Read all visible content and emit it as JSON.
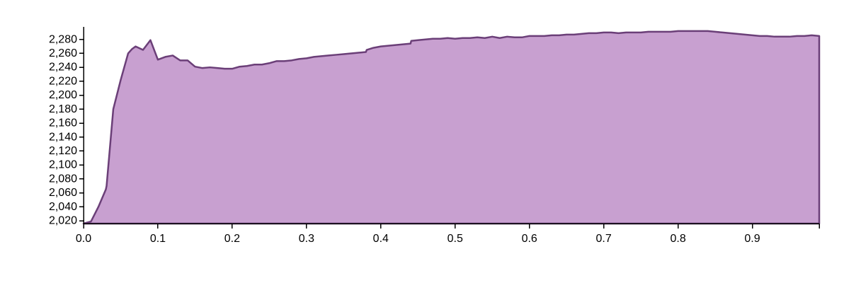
{
  "chart_data": {
    "type": "area",
    "title": "",
    "xlabel": "",
    "ylabel": "",
    "xlim": [
      0,
      0.99
    ],
    "ylim": [
      2016,
      2297
    ],
    "grid": false,
    "colors": {
      "fill": "#c8a0d0",
      "stroke": "#6b3f78"
    },
    "x_ticks": [
      0.0,
      0.1,
      0.2,
      0.3,
      0.4,
      0.5,
      0.6,
      0.7,
      0.8,
      0.9
    ],
    "x_tick_labels": [
      "0.0",
      "0.1",
      "0.2",
      "0.3",
      "0.4",
      "0.5",
      "0.6",
      "0.7",
      "0.8",
      "0.9"
    ],
    "y_ticks": [
      2020,
      2040,
      2060,
      2080,
      2100,
      2120,
      2140,
      2160,
      2180,
      2200,
      2220,
      2240,
      2260,
      2280
    ],
    "y_tick_labels": [
      "2,020",
      "2,040",
      "2,060",
      "2,080",
      "2,100",
      "2,120",
      "2,140",
      "2,160",
      "2,180",
      "2,200",
      "2,220",
      "2,240",
      "2,260",
      "2,280"
    ],
    "series": [
      {
        "x": [
          0.0,
          0.01,
          0.02,
          0.03,
          0.031,
          0.04,
          0.05,
          0.06,
          0.065,
          0.07,
          0.08,
          0.09,
          0.1,
          0.11,
          0.12,
          0.13,
          0.14,
          0.15,
          0.16,
          0.17,
          0.18,
          0.19,
          0.2,
          0.21,
          0.22,
          0.23,
          0.24,
          0.25,
          0.26,
          0.27,
          0.28,
          0.29,
          0.3,
          0.31,
          0.32,
          0.33,
          0.34,
          0.35,
          0.36,
          0.37,
          0.38,
          0.381,
          0.39,
          0.4,
          0.41,
          0.42,
          0.43,
          0.44,
          0.441,
          0.45,
          0.46,
          0.47,
          0.48,
          0.49,
          0.5,
          0.51,
          0.52,
          0.53,
          0.54,
          0.55,
          0.56,
          0.57,
          0.58,
          0.59,
          0.6,
          0.61,
          0.62,
          0.63,
          0.64,
          0.65,
          0.66,
          0.67,
          0.68,
          0.69,
          0.7,
          0.71,
          0.72,
          0.73,
          0.74,
          0.75,
          0.76,
          0.77,
          0.78,
          0.79,
          0.8,
          0.81,
          0.82,
          0.83,
          0.84,
          0.85,
          0.86,
          0.87,
          0.88,
          0.89,
          0.9,
          0.91,
          0.92,
          0.93,
          0.94,
          0.95,
          0.96,
          0.97,
          0.98,
          0.99
        ],
        "values": [
          2016,
          2019,
          2040,
          2065,
          2070,
          2180,
          2222,
          2260,
          2266,
          2270,
          2265,
          2279,
          2251,
          2255,
          2257,
          2250,
          2250,
          2241,
          2239,
          2240,
          2239,
          2238,
          2238,
          2241,
          2242,
          2244,
          2244,
          2246,
          2249,
          2249,
          2250,
          2252,
          2253,
          2255,
          2256,
          2257,
          2258,
          2259,
          2260,
          2261,
          2262,
          2265,
          2268,
          2270,
          2271,
          2272,
          2273,
          2274,
          2278,
          2279,
          2280,
          2281,
          2281,
          2282,
          2281,
          2282,
          2282,
          2283,
          2282,
          2284,
          2282,
          2284,
          2283,
          2283,
          2285,
          2285,
          2285,
          2286,
          2286,
          2287,
          2287,
          2288,
          2289,
          2289,
          2290,
          2290,
          2289,
          2290,
          2290,
          2290,
          2291,
          2291,
          2291,
          2291,
          2292,
          2292,
          2292,
          2292,
          2292,
          2291,
          2290,
          2289,
          2288,
          2287,
          2286,
          2285,
          2285,
          2284,
          2284,
          2284,
          2285,
          2285,
          2286,
          2285
        ]
      }
    ]
  }
}
